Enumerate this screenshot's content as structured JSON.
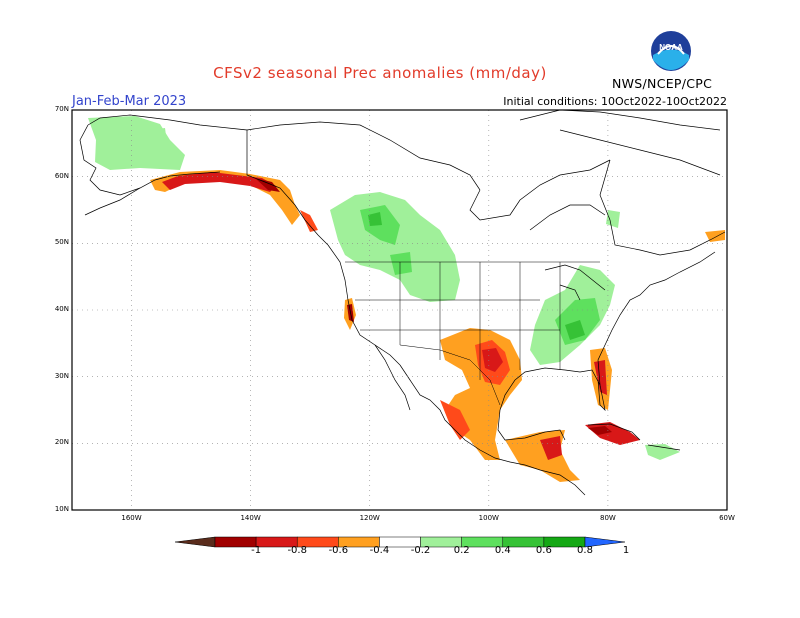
{
  "header": {
    "title": "CFSv2 seasonal Prec anomalies (mm/day)",
    "period": "Jan-Feb-Mar 2023",
    "initial_conditions": "Initial conditions: 10Oct2022-10Oct2022",
    "agency": "NWS/NCEP/CPC",
    "logo_text": "NOAA"
  },
  "map": {
    "lat_labels": [
      "70N",
      "60N",
      "50N",
      "40N",
      "30N",
      "20N",
      "10N"
    ],
    "lon_labels": [
      "160W",
      "140W",
      "120W",
      "100W",
      "80W",
      "60W"
    ],
    "lat_range": [
      10,
      70
    ],
    "lon_range": [
      -170,
      -60
    ]
  },
  "colorbar": {
    "labels": [
      "-1",
      "-0.8",
      "-0.6",
      "-0.4",
      "-0.2",
      "0.2",
      "0.4",
      "0.6",
      "0.8",
      "1"
    ],
    "colors": [
      "#5a2c1c",
      "#a10000",
      "#d81818",
      "#ff4a1a",
      "#ffa020",
      "#ffffff",
      "#a0f09a",
      "#5ee05e",
      "#36c236",
      "#14a814",
      "#2266ff"
    ]
  }
}
